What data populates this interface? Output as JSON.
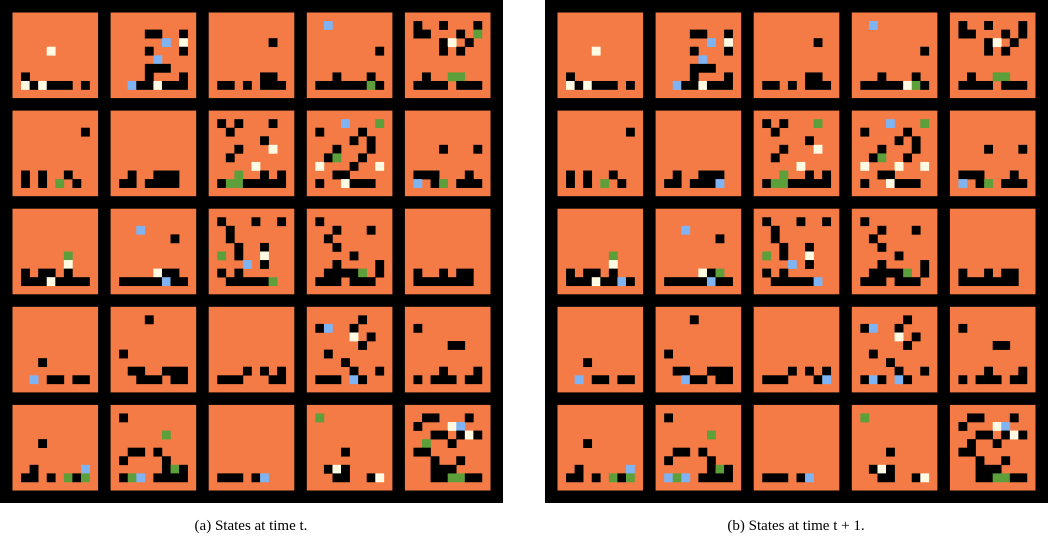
{
  "figure": {
    "panels": [
      {
        "caption": "(a) States at time t."
      },
      {
        "caption": "(b) States at time t + 1."
      }
    ]
  }
}
